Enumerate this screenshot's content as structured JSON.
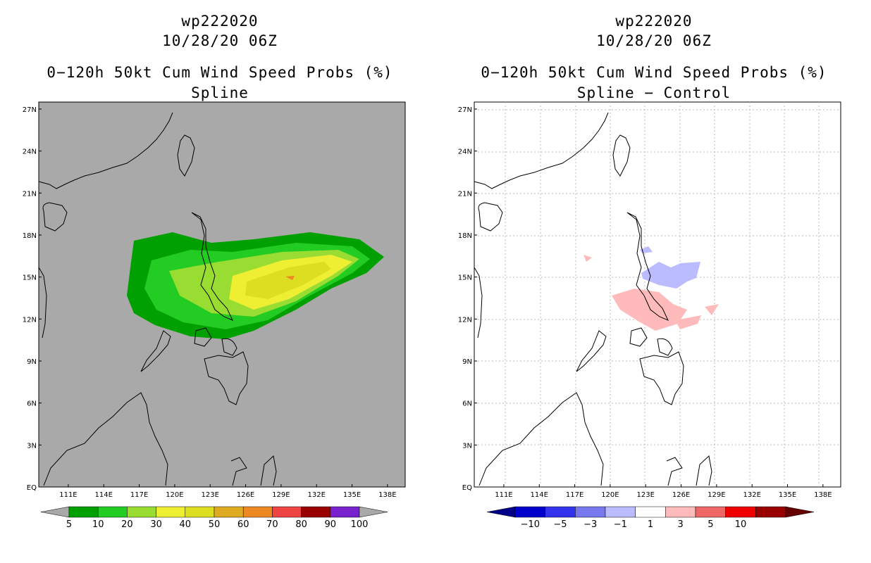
{
  "left": {
    "storm_id": "wp222020",
    "datetime": "10/28/20 06Z",
    "title": "0−120h 50kt Cum Wind Speed Probs (%)",
    "subtitle": "Spline",
    "background": "#a9a9a9",
    "colorbar": {
      "colors": [
        "#00a000",
        "#22cc22",
        "#99dd33",
        "#eeee33",
        "#dddd22",
        "#ddaa22",
        "#ee8822",
        "#ee4444",
        "#990000",
        "#7722cc"
      ],
      "labels": [
        "5",
        "10",
        "20",
        "30",
        "40",
        "50",
        "60",
        "70",
        "80",
        "90",
        "100"
      ],
      "end_color": "#a9a9a9"
    }
  },
  "right": {
    "storm_id": "wp222020",
    "datetime": "10/28/20 06Z",
    "title": "0−120h 50kt Cum Wind Speed Probs (%)",
    "subtitle": "Spline − Control",
    "background": "#ffffff",
    "colorbar": {
      "colors": [
        "#0000cc",
        "#3333ee",
        "#7777ee",
        "#bbbbff",
        "#ffffff",
        "#ffbbbb",
        "#ee6666",
        "#ee0000",
        "#990000"
      ],
      "labels": [
        "−10",
        "−5",
        "−3",
        "−1",
        "1",
        "3",
        "5",
        "10"
      ],
      "end_left": "#000088",
      "end_right": "#660000"
    }
  },
  "axes": {
    "x_ticks": [
      "111E",
      "114E",
      "117E",
      "120E",
      "123E",
      "126E",
      "129E",
      "132E",
      "135E",
      "138E"
    ],
    "y_ticks": [
      "27N",
      "24N",
      "21N",
      "18N",
      "15N",
      "12N",
      "9N",
      "6N",
      "3N",
      "EQ"
    ],
    "lon_range": [
      108.5,
      139.5
    ],
    "lat_range": [
      0,
      27.5
    ]
  },
  "chart_data": {
    "type": "heatmap",
    "series": [
      {
        "name": "Spline",
        "contour_levels_pct": [
          5,
          10,
          20,
          30,
          40,
          50,
          60,
          70,
          80,
          90,
          100
        ],
        "max_level_pct": 70
      },
      {
        "name": "Spline − Control",
        "contour_levels_pct": [
          -10,
          -5,
          -3,
          -1,
          1,
          3,
          5,
          10
        ]
      }
    ],
    "xlim": [
      108.5,
      139.5
    ],
    "ylim": [
      0,
      27.5
    ],
    "grid": true
  }
}
